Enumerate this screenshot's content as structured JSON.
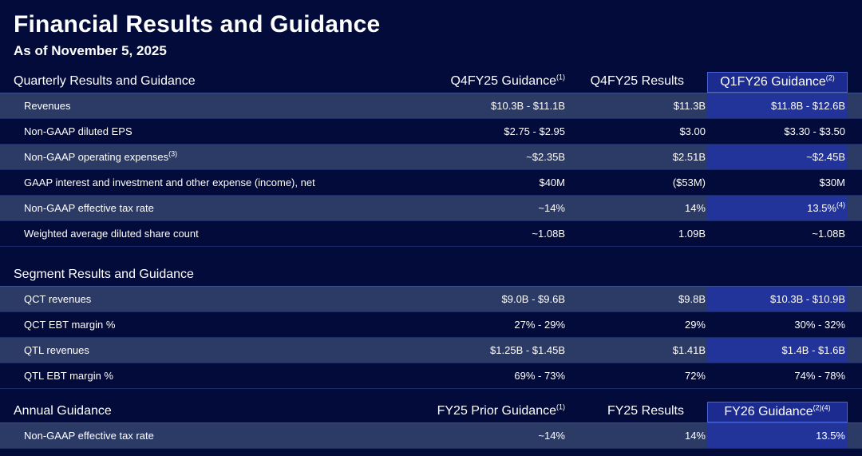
{
  "title": "Financial Results and Guidance",
  "subtitle": "As of November 5, 2025",
  "quarterly": {
    "title": "Quarterly Results and Guidance",
    "col1": "Q4FY25 Guidance",
    "col1_sup": "(1)",
    "col2": "Q4FY25 Results",
    "col3": "Q1FY26 Guidance",
    "col3_sup": "(2)",
    "rows": [
      {
        "label": "Revenues",
        "label_sup": "",
        "c1": "$10.3B - $11.1B",
        "c2": "$11.3B",
        "c3": "$11.8B - $12.6B",
        "c3_sup": ""
      },
      {
        "label": "Non-GAAP diluted EPS",
        "label_sup": "",
        "c1": "$2.75 - $2.95",
        "c2": "$3.00",
        "c3": "$3.30 - $3.50",
        "c3_sup": ""
      },
      {
        "label": "Non-GAAP operating expenses",
        "label_sup": "(3)",
        "c1": "~$2.35B",
        "c2": "$2.51B",
        "c3": "~$2.45B",
        "c3_sup": ""
      },
      {
        "label": "GAAP interest and investment and other expense (income), net",
        "label_sup": "",
        "c1": "$40M",
        "c2": "($53M)",
        "c3": "$30M",
        "c3_sup": ""
      },
      {
        "label": "Non-GAAP effective tax rate",
        "label_sup": "",
        "c1": "~14%",
        "c2": "14%",
        "c3": "13.5%",
        "c3_sup": "(4)"
      },
      {
        "label": "Weighted average diluted share count",
        "label_sup": "",
        "c1": "~1.08B",
        "c2": "1.09B",
        "c3": "~1.08B",
        "c3_sup": ""
      }
    ]
  },
  "segment": {
    "title": "Segment Results and Guidance",
    "rows": [
      {
        "label": "QCT revenues",
        "label_sup": "",
        "c1": "$9.0B - $9.6B",
        "c2": "$9.8B",
        "c3": "$10.3B - $10.9B",
        "c3_sup": ""
      },
      {
        "label": "QCT EBT margin %",
        "label_sup": "",
        "c1": "27% - 29%",
        "c2": "29%",
        "c3": "30% - 32%",
        "c3_sup": ""
      },
      {
        "label": "QTL revenues",
        "label_sup": "",
        "c1": "$1.25B - $1.45B",
        "c2": "$1.41B",
        "c3": "$1.4B - $1.6B",
        "c3_sup": ""
      },
      {
        "label": "QTL EBT margin %",
        "label_sup": "",
        "c1": "69% - 73%",
        "c2": "72%",
        "c3": "74% - 78%",
        "c3_sup": ""
      }
    ]
  },
  "annual": {
    "title": "Annual Guidance",
    "col1": "FY25 Prior Guidance",
    "col1_sup": "(1)",
    "col2": "FY25 Results",
    "col3": "FY26 Guidance",
    "col3_sup": "(2)(4)",
    "rows": [
      {
        "label": "Non-GAAP effective tax rate",
        "label_sup": "",
        "c1": "~14%",
        "c2": "14%",
        "c3": "13.5%",
        "c3_sup": ""
      }
    ]
  }
}
